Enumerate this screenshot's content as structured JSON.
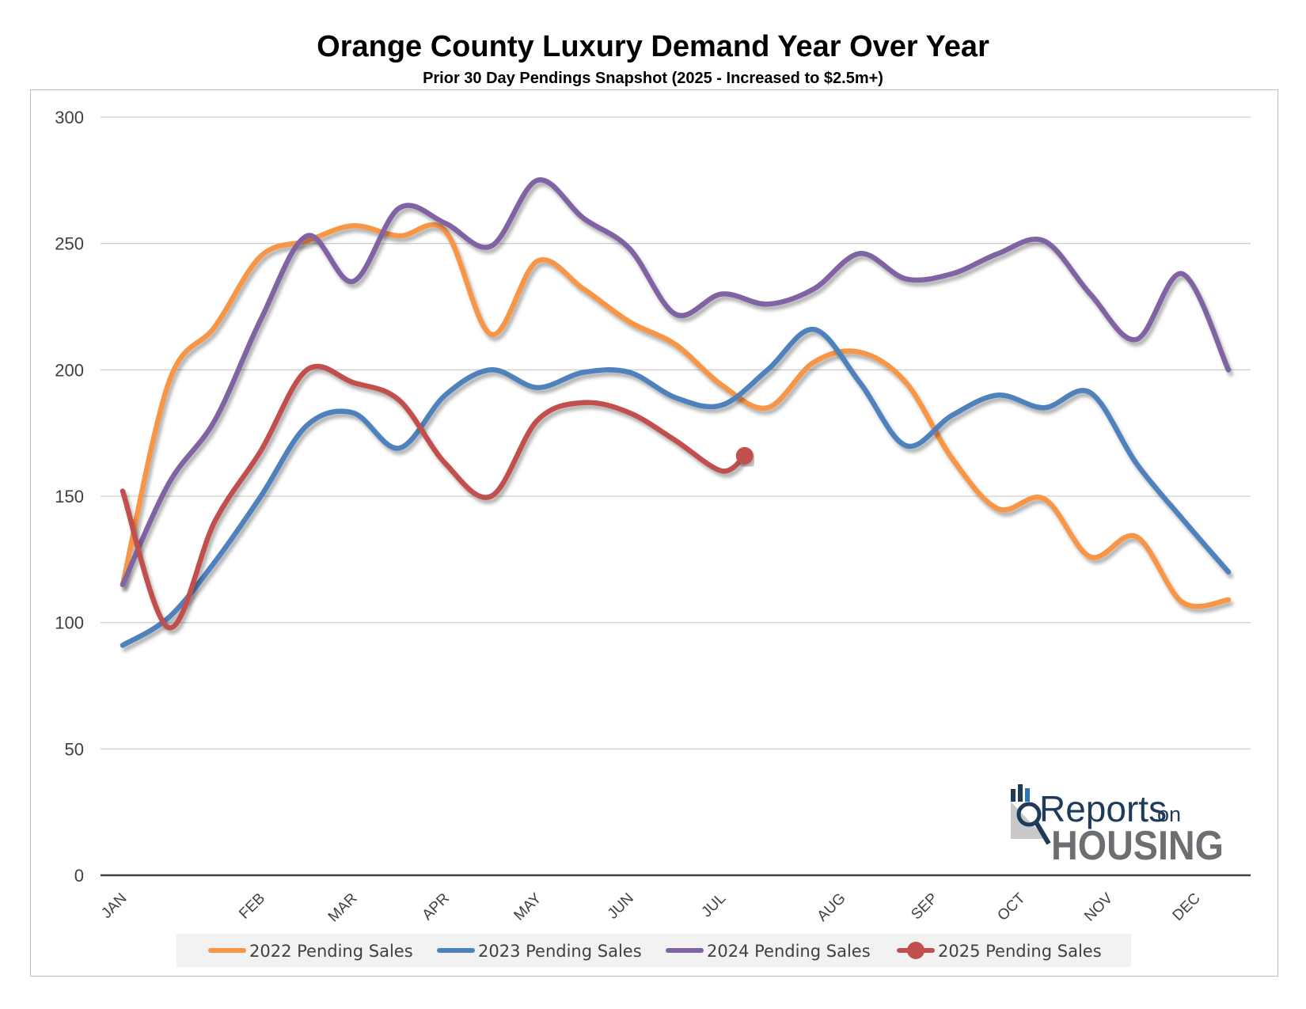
{
  "chart_data": {
    "type": "line",
    "title": "Orange County Luxury Demand Year Over Year",
    "subtitle": "Prior 30 Day Pendings Snapshot (2025 - Increased to $2.5m+)",
    "xlabel": "",
    "ylabel": "",
    "ylim": [
      0,
      300
    ],
    "yticks": [
      0,
      50,
      100,
      150,
      200,
      250,
      300
    ],
    "grid": true,
    "legend_position": "bottom",
    "x_tick_labels": [
      {
        "label": "JAN",
        "t": 0
      },
      {
        "label": "FEB",
        "t": 3
      },
      {
        "label": "MAR",
        "t": 5
      },
      {
        "label": "APR",
        "t": 7
      },
      {
        "label": "MAY",
        "t": 9
      },
      {
        "label": "JUN",
        "t": 11
      },
      {
        "label": "JUL",
        "t": 13
      },
      {
        "label": "AUG",
        "t": 15.6
      },
      {
        "label": "SEP",
        "t": 17.6
      },
      {
        "label": "OCT",
        "t": 19.5
      },
      {
        "label": "NOV",
        "t": 21.4
      },
      {
        "label": "DEC",
        "t": 23.3
      }
    ],
    "x_period_count": 24,
    "series": [
      {
        "name": "2022 Pending Sales",
        "color": "#f79646",
        "marker_at_end": false,
        "x": [
          0,
          1,
          2,
          3,
          4,
          5,
          6,
          7,
          8,
          9,
          10,
          11,
          12,
          13,
          14,
          15,
          16,
          17,
          18,
          19,
          20,
          21,
          22,
          23,
          24
        ],
        "values": [
          115,
          195,
          217,
          245,
          251,
          257,
          253,
          255,
          214,
          243,
          232,
          219,
          210,
          194,
          185,
          203,
          207,
          195,
          165,
          145,
          149,
          126,
          134,
          108,
          109
        ]
      },
      {
        "name": "2023 Pending Sales",
        "color": "#4f81bd",
        "marker_at_end": false,
        "x": [
          0,
          1,
          2,
          3,
          4,
          5,
          6,
          7,
          8,
          9,
          10,
          11,
          12,
          13,
          14,
          15,
          16,
          17,
          18,
          19,
          20,
          21,
          22,
          23,
          24
        ],
        "values": [
          91,
          102,
          124,
          150,
          178,
          183,
          169,
          190,
          200,
          193,
          199,
          199,
          189,
          186,
          200,
          216,
          195,
          170,
          182,
          190,
          185,
          191,
          163,
          141,
          120
        ]
      },
      {
        "name": "2024 Pending Sales",
        "color": "#8064a2",
        "marker_at_end": false,
        "x": [
          0,
          1,
          2,
          3,
          4,
          5,
          6,
          7,
          8,
          9,
          10,
          11,
          12,
          13,
          14,
          15,
          16,
          17,
          18,
          19,
          20,
          21,
          22,
          23,
          24
        ],
        "values": [
          115,
          155,
          180,
          220,
          253,
          235,
          264,
          258,
          249,
          275,
          260,
          248,
          222,
          230,
          226,
          232,
          246,
          236,
          238,
          246,
          251,
          230,
          212,
          238,
          200
        ]
      },
      {
        "name": "2025 Pending Sales",
        "color": "#c0504d",
        "marker_at_end": true,
        "x": [
          0,
          1,
          2,
          3,
          4,
          5,
          6,
          7,
          8,
          9,
          10,
          11,
          12,
          13,
          13.5
        ],
        "values": [
          152,
          98,
          140,
          168,
          200,
          195,
          188,
          163,
          150,
          180,
          187,
          183,
          172,
          160,
          166
        ]
      }
    ]
  },
  "logo": {
    "word1": "Reports",
    "word2": "on",
    "word3": "HOUSING"
  }
}
